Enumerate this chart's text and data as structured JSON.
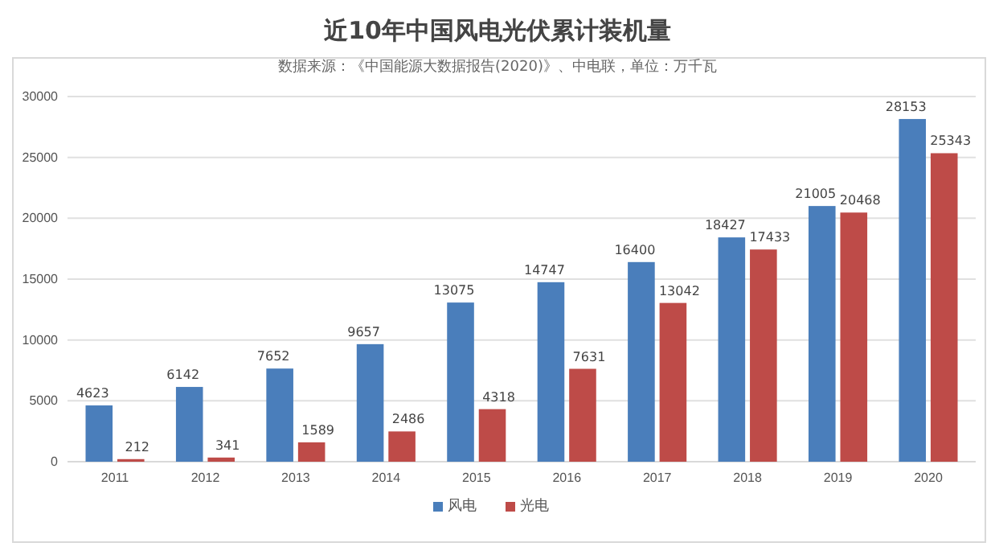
{
  "chart_data": {
    "type": "bar",
    "title": "近10年中国风电光伏累计装机量",
    "subtitle": "数据来源：《中国能源大数据报告(2020)》、中电联，单位：万千瓦",
    "categories": [
      "2011",
      "2012",
      "2013",
      "2014",
      "2015",
      "2016",
      "2017",
      "2018",
      "2019",
      "2020"
    ],
    "series": [
      {
        "name": "风电",
        "color": "#4a7ebb",
        "values": [
          4623,
          6142,
          7652,
          9657,
          13075,
          14747,
          16400,
          18427,
          21005,
          28153
        ]
      },
      {
        "name": "光电",
        "color": "#be4b48",
        "values": [
          212,
          341,
          1589,
          2486,
          4318,
          7631,
          13042,
          17433,
          20468,
          25343
        ]
      }
    ],
    "ylim": [
      0,
      30000
    ],
    "yticks": [
      0,
      5000,
      10000,
      15000,
      20000,
      25000,
      30000
    ],
    "grid": "y",
    "legend": "bottom",
    "data_labels": true
  }
}
